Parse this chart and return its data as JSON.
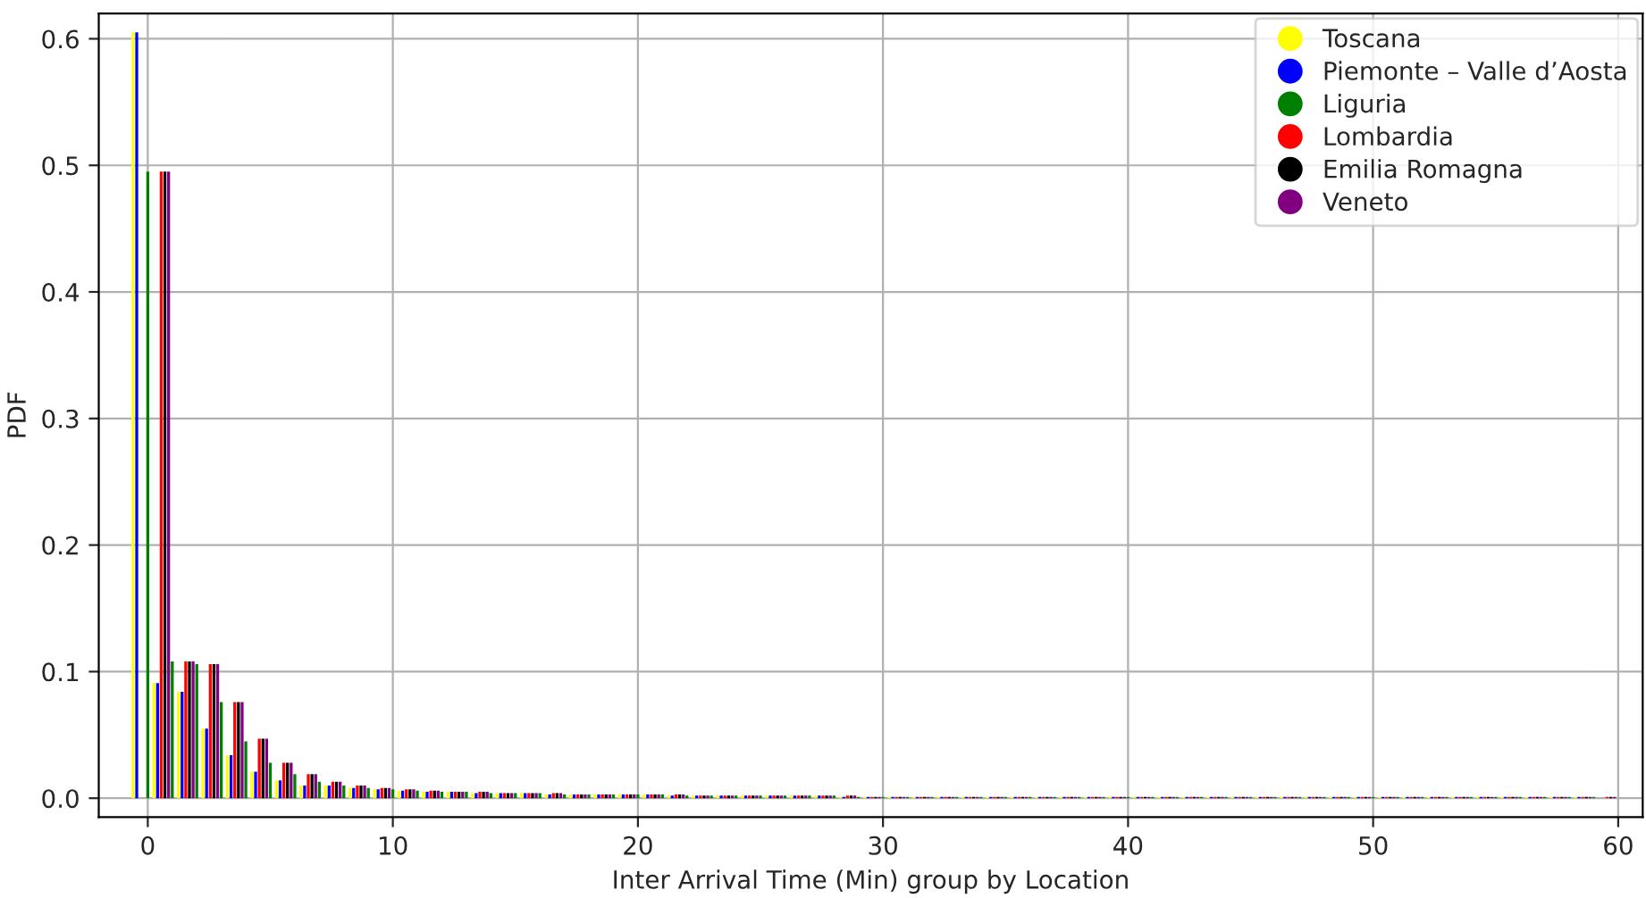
{
  "chart_data": {
    "type": "bar",
    "xlabel": "Inter Arrival Time (Min) group by Location",
    "ylabel": "PDF",
    "xlim": [
      -2,
      61
    ],
    "xticks": [
      0,
      10,
      20,
      30,
      40,
      50,
      60
    ],
    "ylim": [
      -0.015,
      0.62
    ],
    "yticks": [
      {
        "value": 0,
        "label": "0.0"
      },
      0.1,
      0.2,
      0.3,
      0.4,
      0.5,
      0.6
    ],
    "grid": true,
    "legend": "top right",
    "marker": "circle",
    "series": [
      {
        "name": "Toscana",
        "color": "#ffff00",
        "x": [
          -0.6,
          0.25,
          1.25,
          2.25,
          3.25,
          4.25,
          5.25,
          6.25,
          7.25,
          8.25,
          9.25,
          10.25,
          11.25,
          12.25,
          13.25,
          14.25,
          15.25,
          16.25,
          17.25,
          18.25,
          19.25,
          20.25,
          21.25,
          22.25,
          23.25,
          24.25,
          25.25,
          26.25,
          27.25,
          28.25,
          29.25,
          30.25,
          31.25,
          32.25,
          33.25,
          34.25,
          35.25,
          36.25,
          37.25,
          38.25,
          39.25,
          40.25,
          41.25,
          42.25,
          43.25,
          44.25,
          45.25,
          46.25,
          47.25,
          48.25,
          49.25,
          50.25,
          51.25,
          52.25,
          53.25,
          54.25,
          55.25,
          56.25,
          57.25,
          58.25
        ],
        "values": [
          0.605,
          0.091,
          0.084,
          0.055,
          0.034,
          0.021,
          0.014,
          0.01,
          0.01,
          0.008,
          0.007,
          0.006,
          0.005,
          0.005,
          0.004,
          0.004,
          0.004,
          0.003,
          0.003,
          0.003,
          0.003,
          0.003,
          0.002,
          0.002,
          0.002,
          0.002,
          0.002,
          0.002,
          0.002,
          0.001,
          0.001,
          0.001,
          0.001,
          0.001,
          0.001,
          0.001,
          0.001,
          0.001,
          0.001,
          0.001,
          0.001,
          0.001,
          0.001,
          0.001,
          0.001,
          0.001,
          0.001,
          0.001,
          0.001,
          0.001,
          0.001,
          0.001,
          0.001,
          0.001,
          0.001,
          0.001,
          0.001,
          0.001,
          0.001,
          0.001
        ]
      },
      {
        "name": "Piemonte – Valle d’Aosta",
        "color": "#0000ff",
        "x": [
          -0.45,
          0.4,
          1.4,
          2.4,
          3.4,
          4.4,
          5.4,
          6.4,
          7.4,
          8.4,
          9.4,
          10.4,
          11.4,
          12.4,
          13.4,
          14.4,
          15.4,
          16.4,
          17.4,
          18.4,
          19.4,
          20.4,
          21.4,
          22.4,
          23.4,
          24.4,
          25.4,
          26.4,
          27.4,
          28.4,
          29.4,
          30.4,
          31.4,
          32.4,
          33.4,
          34.4,
          35.4,
          36.4,
          37.4,
          38.4,
          39.4,
          40.4,
          41.4,
          42.4,
          43.4,
          44.4,
          45.4,
          46.4,
          47.4,
          48.4,
          49.4,
          50.4,
          51.4,
          52.4,
          53.4,
          54.4,
          55.4,
          56.4,
          57.4,
          58.4
        ],
        "values": [
          0.605,
          0.091,
          0.084,
          0.055,
          0.034,
          0.021,
          0.014,
          0.01,
          0.01,
          0.008,
          0.007,
          0.006,
          0.005,
          0.005,
          0.004,
          0.004,
          0.004,
          0.003,
          0.003,
          0.003,
          0.003,
          0.003,
          0.002,
          0.002,
          0.002,
          0.002,
          0.002,
          0.002,
          0.002,
          0.001,
          0.001,
          0.001,
          0.001,
          0.001,
          0.001,
          0.001,
          0.001,
          0.001,
          0.001,
          0.001,
          0.001,
          0.001,
          0.001,
          0.001,
          0.001,
          0.001,
          0.001,
          0.001,
          0.001,
          0.001,
          0.001,
          0.001,
          0.001,
          0.001,
          0.001,
          0.001,
          0.001,
          0.001,
          0.001,
          0.001
        ]
      },
      {
        "name": "Liguria",
        "color": "#008000",
        "x": [
          0,
          1,
          2,
          3,
          4,
          5,
          6,
          7,
          8,
          9,
          10,
          11,
          12,
          13,
          14,
          15,
          16,
          17,
          18,
          19,
          20,
          21,
          22,
          23,
          24,
          25,
          26,
          27,
          28,
          29,
          30,
          31,
          32,
          33,
          34,
          35,
          36,
          37,
          38,
          39,
          40,
          41,
          42,
          43,
          44,
          45,
          46,
          47,
          48,
          49,
          50,
          51,
          52,
          53,
          54,
          55,
          56,
          57,
          58,
          59
        ],
        "values": [
          0.495,
          0.108,
          0.106,
          0.076,
          0.045,
          0.028,
          0.019,
          0.013,
          0.01,
          0.008,
          0.007,
          0.006,
          0.005,
          0.005,
          0.004,
          0.004,
          0.004,
          0.003,
          0.003,
          0.003,
          0.003,
          0.003,
          0.002,
          0.002,
          0.002,
          0.002,
          0.002,
          0.002,
          0.002,
          0.001,
          0.001,
          0.001,
          0.001,
          0.001,
          0.001,
          0.001,
          0.001,
          0.001,
          0.001,
          0.001,
          0.001,
          0.001,
          0.001,
          0.001,
          0.001,
          0.001,
          0.001,
          0.001,
          0.001,
          0.001,
          0.001,
          0.001,
          0.001,
          0.001,
          0.001,
          0.001,
          0.001,
          0.001,
          0.001,
          0.001
        ]
      },
      {
        "name": "Lombardia",
        "color": "#ff0000",
        "x": [
          0.55,
          1.55,
          2.55,
          3.55,
          4.55,
          5.55,
          6.55,
          7.55,
          8.55,
          9.55,
          10.55,
          11.55,
          12.55,
          13.55,
          14.55,
          15.55,
          16.55,
          17.55,
          18.55,
          19.55,
          20.55,
          21.55,
          22.55,
          23.55,
          24.55,
          25.55,
          26.55,
          27.55,
          28.55,
          29.55,
          30.55,
          31.55,
          32.55,
          33.55,
          34.55,
          35.55,
          36.55,
          37.55,
          38.55,
          39.55,
          40.55,
          41.55,
          42.55,
          43.55,
          44.55,
          45.55,
          46.55,
          47.55,
          48.55,
          49.55,
          50.55,
          51.55,
          52.55,
          53.55,
          54.55,
          55.55,
          56.55,
          57.55,
          58.55,
          59.55
        ],
        "values": [
          0.495,
          0.108,
          0.106,
          0.076,
          0.047,
          0.028,
          0.019,
          0.013,
          0.01,
          0.008,
          0.007,
          0.006,
          0.005,
          0.005,
          0.004,
          0.004,
          0.004,
          0.003,
          0.003,
          0.003,
          0.003,
          0.003,
          0.002,
          0.002,
          0.002,
          0.002,
          0.002,
          0.002,
          0.002,
          0.001,
          0.001,
          0.001,
          0.001,
          0.001,
          0.001,
          0.001,
          0.001,
          0.001,
          0.001,
          0.001,
          0.001,
          0.001,
          0.001,
          0.001,
          0.001,
          0.001,
          0.001,
          0.001,
          0.001,
          0.001,
          0.001,
          0.001,
          0.001,
          0.001,
          0.001,
          0.001,
          0.001,
          0.001,
          0.001,
          0.001
        ]
      },
      {
        "name": "Emilia Romagna",
        "color": "#000000",
        "x": [
          0.7,
          1.7,
          2.7,
          3.7,
          4.7,
          5.7,
          6.7,
          7.7,
          8.7,
          9.7,
          10.7,
          11.7,
          12.7,
          13.7,
          14.7,
          15.7,
          16.7,
          17.7,
          18.7,
          19.7,
          20.7,
          21.7,
          22.7,
          23.7,
          24.7,
          25.7,
          26.7,
          27.7,
          28.7,
          29.7,
          30.7,
          31.7,
          32.7,
          33.7,
          34.7,
          35.7,
          36.7,
          37.7,
          38.7,
          39.7,
          40.7,
          41.7,
          42.7,
          43.7,
          44.7,
          45.7,
          46.7,
          47.7,
          48.7,
          49.7,
          50.7,
          51.7,
          52.7,
          53.7,
          54.7,
          55.7,
          56.7,
          57.7,
          58.7,
          59.7
        ],
        "values": [
          0.495,
          0.108,
          0.106,
          0.076,
          0.047,
          0.028,
          0.019,
          0.013,
          0.01,
          0.008,
          0.007,
          0.006,
          0.005,
          0.005,
          0.004,
          0.004,
          0.004,
          0.003,
          0.003,
          0.003,
          0.003,
          0.003,
          0.002,
          0.002,
          0.002,
          0.002,
          0.002,
          0.002,
          0.002,
          0.001,
          0.001,
          0.001,
          0.001,
          0.001,
          0.001,
          0.001,
          0.001,
          0.001,
          0.001,
          0.001,
          0.001,
          0.001,
          0.001,
          0.001,
          0.001,
          0.001,
          0.001,
          0.001,
          0.001,
          0.001,
          0.001,
          0.001,
          0.001,
          0.001,
          0.001,
          0.001,
          0.001,
          0.001,
          0.001,
          0.001
        ]
      },
      {
        "name": "Veneto",
        "color": "#800080",
        "x": [
          0.85,
          1.85,
          2.85,
          3.85,
          4.85,
          5.85,
          6.85,
          7.85,
          8.85,
          9.85,
          10.85,
          11.85,
          12.85,
          13.85,
          14.85,
          15.85,
          16.85,
          17.85,
          18.85,
          19.85,
          20.85,
          21.85,
          22.85,
          23.85,
          24.85,
          25.85,
          26.85,
          27.85,
          28.85,
          29.85,
          30.85,
          31.85,
          32.85,
          33.85,
          34.85,
          35.85,
          36.85,
          37.85,
          38.85,
          39.85,
          40.85,
          41.85,
          42.85,
          43.85,
          44.85,
          45.85,
          46.85,
          47.85,
          48.85,
          49.85,
          50.85,
          51.85,
          52.85,
          53.85,
          54.85,
          55.85,
          56.85,
          57.85,
          58.85,
          59.85
        ],
        "values": [
          0.495,
          0.108,
          0.106,
          0.076,
          0.047,
          0.028,
          0.019,
          0.013,
          0.01,
          0.008,
          0.007,
          0.006,
          0.005,
          0.005,
          0.004,
          0.004,
          0.004,
          0.003,
          0.003,
          0.003,
          0.003,
          0.003,
          0.002,
          0.002,
          0.002,
          0.002,
          0.002,
          0.002,
          0.002,
          0.001,
          0.001,
          0.001,
          0.001,
          0.001,
          0.001,
          0.001,
          0.001,
          0.001,
          0.001,
          0.001,
          0.001,
          0.001,
          0.001,
          0.001,
          0.001,
          0.001,
          0.001,
          0.001,
          0.001,
          0.001,
          0.001,
          0.001,
          0.001,
          0.001,
          0.001,
          0.001,
          0.001,
          0.001,
          0.001,
          0.001
        ]
      }
    ]
  }
}
